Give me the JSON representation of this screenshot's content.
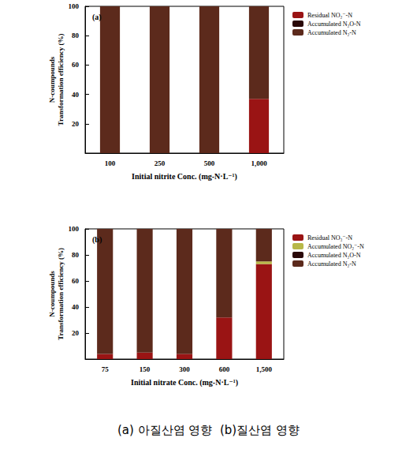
{
  "chart_data": [
    {
      "type": "bar",
      "title": "(a)",
      "stacked": true,
      "grid": false,
      "xlabel": "Initial nitrite Conc. (mg-N·L⁻¹)",
      "ylabel": [
        "N-coumpounds",
        "Transformation efficiency (%)"
      ],
      "categories": [
        "100",
        "250",
        "500",
        "1,000"
      ],
      "ylim": [
        0,
        100
      ],
      "yticks": [
        20,
        40,
        60,
        80,
        100
      ],
      "series": [
        {
          "name": "Residual NO₂⁻-N",
          "color": "#9a1414",
          "values": [
            0,
            0,
            0,
            37
          ]
        },
        {
          "name": "Accumulated N₂O-N",
          "color": "#2a0808",
          "values": [
            0,
            0,
            0,
            0
          ]
        },
        {
          "name": "Accumulated N₂-N",
          "color": "#5c2a1c",
          "values": [
            100,
            100,
            100,
            63
          ]
        }
      ]
    },
    {
      "type": "bar",
      "title": "(b)",
      "stacked": true,
      "grid": false,
      "xlabel": "Initial nitrate Conc. (mg-N·L⁻¹)",
      "ylabel": [
        "N-coumpounds",
        "Transformation efficiency (%)"
      ],
      "categories": [
        "75",
        "150",
        "300",
        "600",
        "1,500"
      ],
      "ylim": [
        0,
        100
      ],
      "yticks": [
        20,
        40,
        60,
        80,
        100
      ],
      "series": [
        {
          "name": "Residual NO₃⁻-N",
          "color": "#9a1414",
          "values": [
            4,
            5,
            4,
            32,
            73
          ]
        },
        {
          "name": "Accumulated NO₂⁻-N",
          "color": "#b8b848",
          "values": [
            0,
            0,
            0,
            0,
            2
          ]
        },
        {
          "name": "Accumulated N₂O-N",
          "color": "#2a0808",
          "values": [
            0,
            0,
            0,
            0,
            0
          ]
        },
        {
          "name": "Accumulated N₂-N",
          "color": "#5c2a1c",
          "values": [
            96,
            95,
            96,
            68,
            25
          ]
        }
      ]
    }
  ],
  "caption": "(a) 아질산염 영향  (b)질산염 영향"
}
